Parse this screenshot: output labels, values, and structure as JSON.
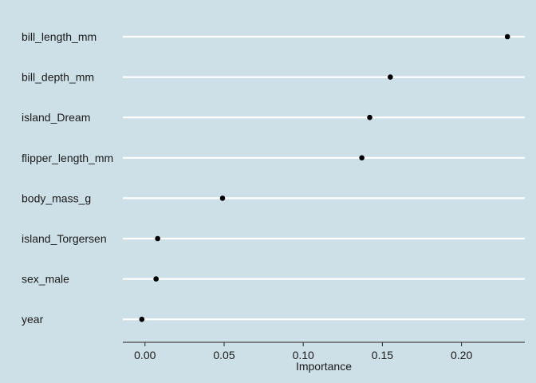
{
  "chart_data": {
    "type": "scatter",
    "title": "",
    "xlabel": "Importance",
    "ylabel": "",
    "xlim": [
      -0.014,
      0.24
    ],
    "grid": "horizontal-lines",
    "legend": "none",
    "x_ticks": [
      0.0,
      0.05,
      0.1,
      0.15,
      0.2
    ],
    "x_tick_labels": [
      "0.00",
      "0.05",
      "0.10",
      "0.15",
      "0.20"
    ],
    "categories": [
      "bill_length_mm",
      "bill_depth_mm",
      "island_Dream",
      "flipper_length_mm",
      "body_mass_g",
      "island_Torgersen",
      "sex_male",
      "year"
    ],
    "values": [
      0.229,
      0.155,
      0.142,
      0.137,
      0.049,
      0.008,
      0.007,
      -0.002
    ],
    "colors": {
      "background": "#cddfe7",
      "gridline": "#ffffff",
      "point": "#000000",
      "axis": "#222222"
    }
  }
}
